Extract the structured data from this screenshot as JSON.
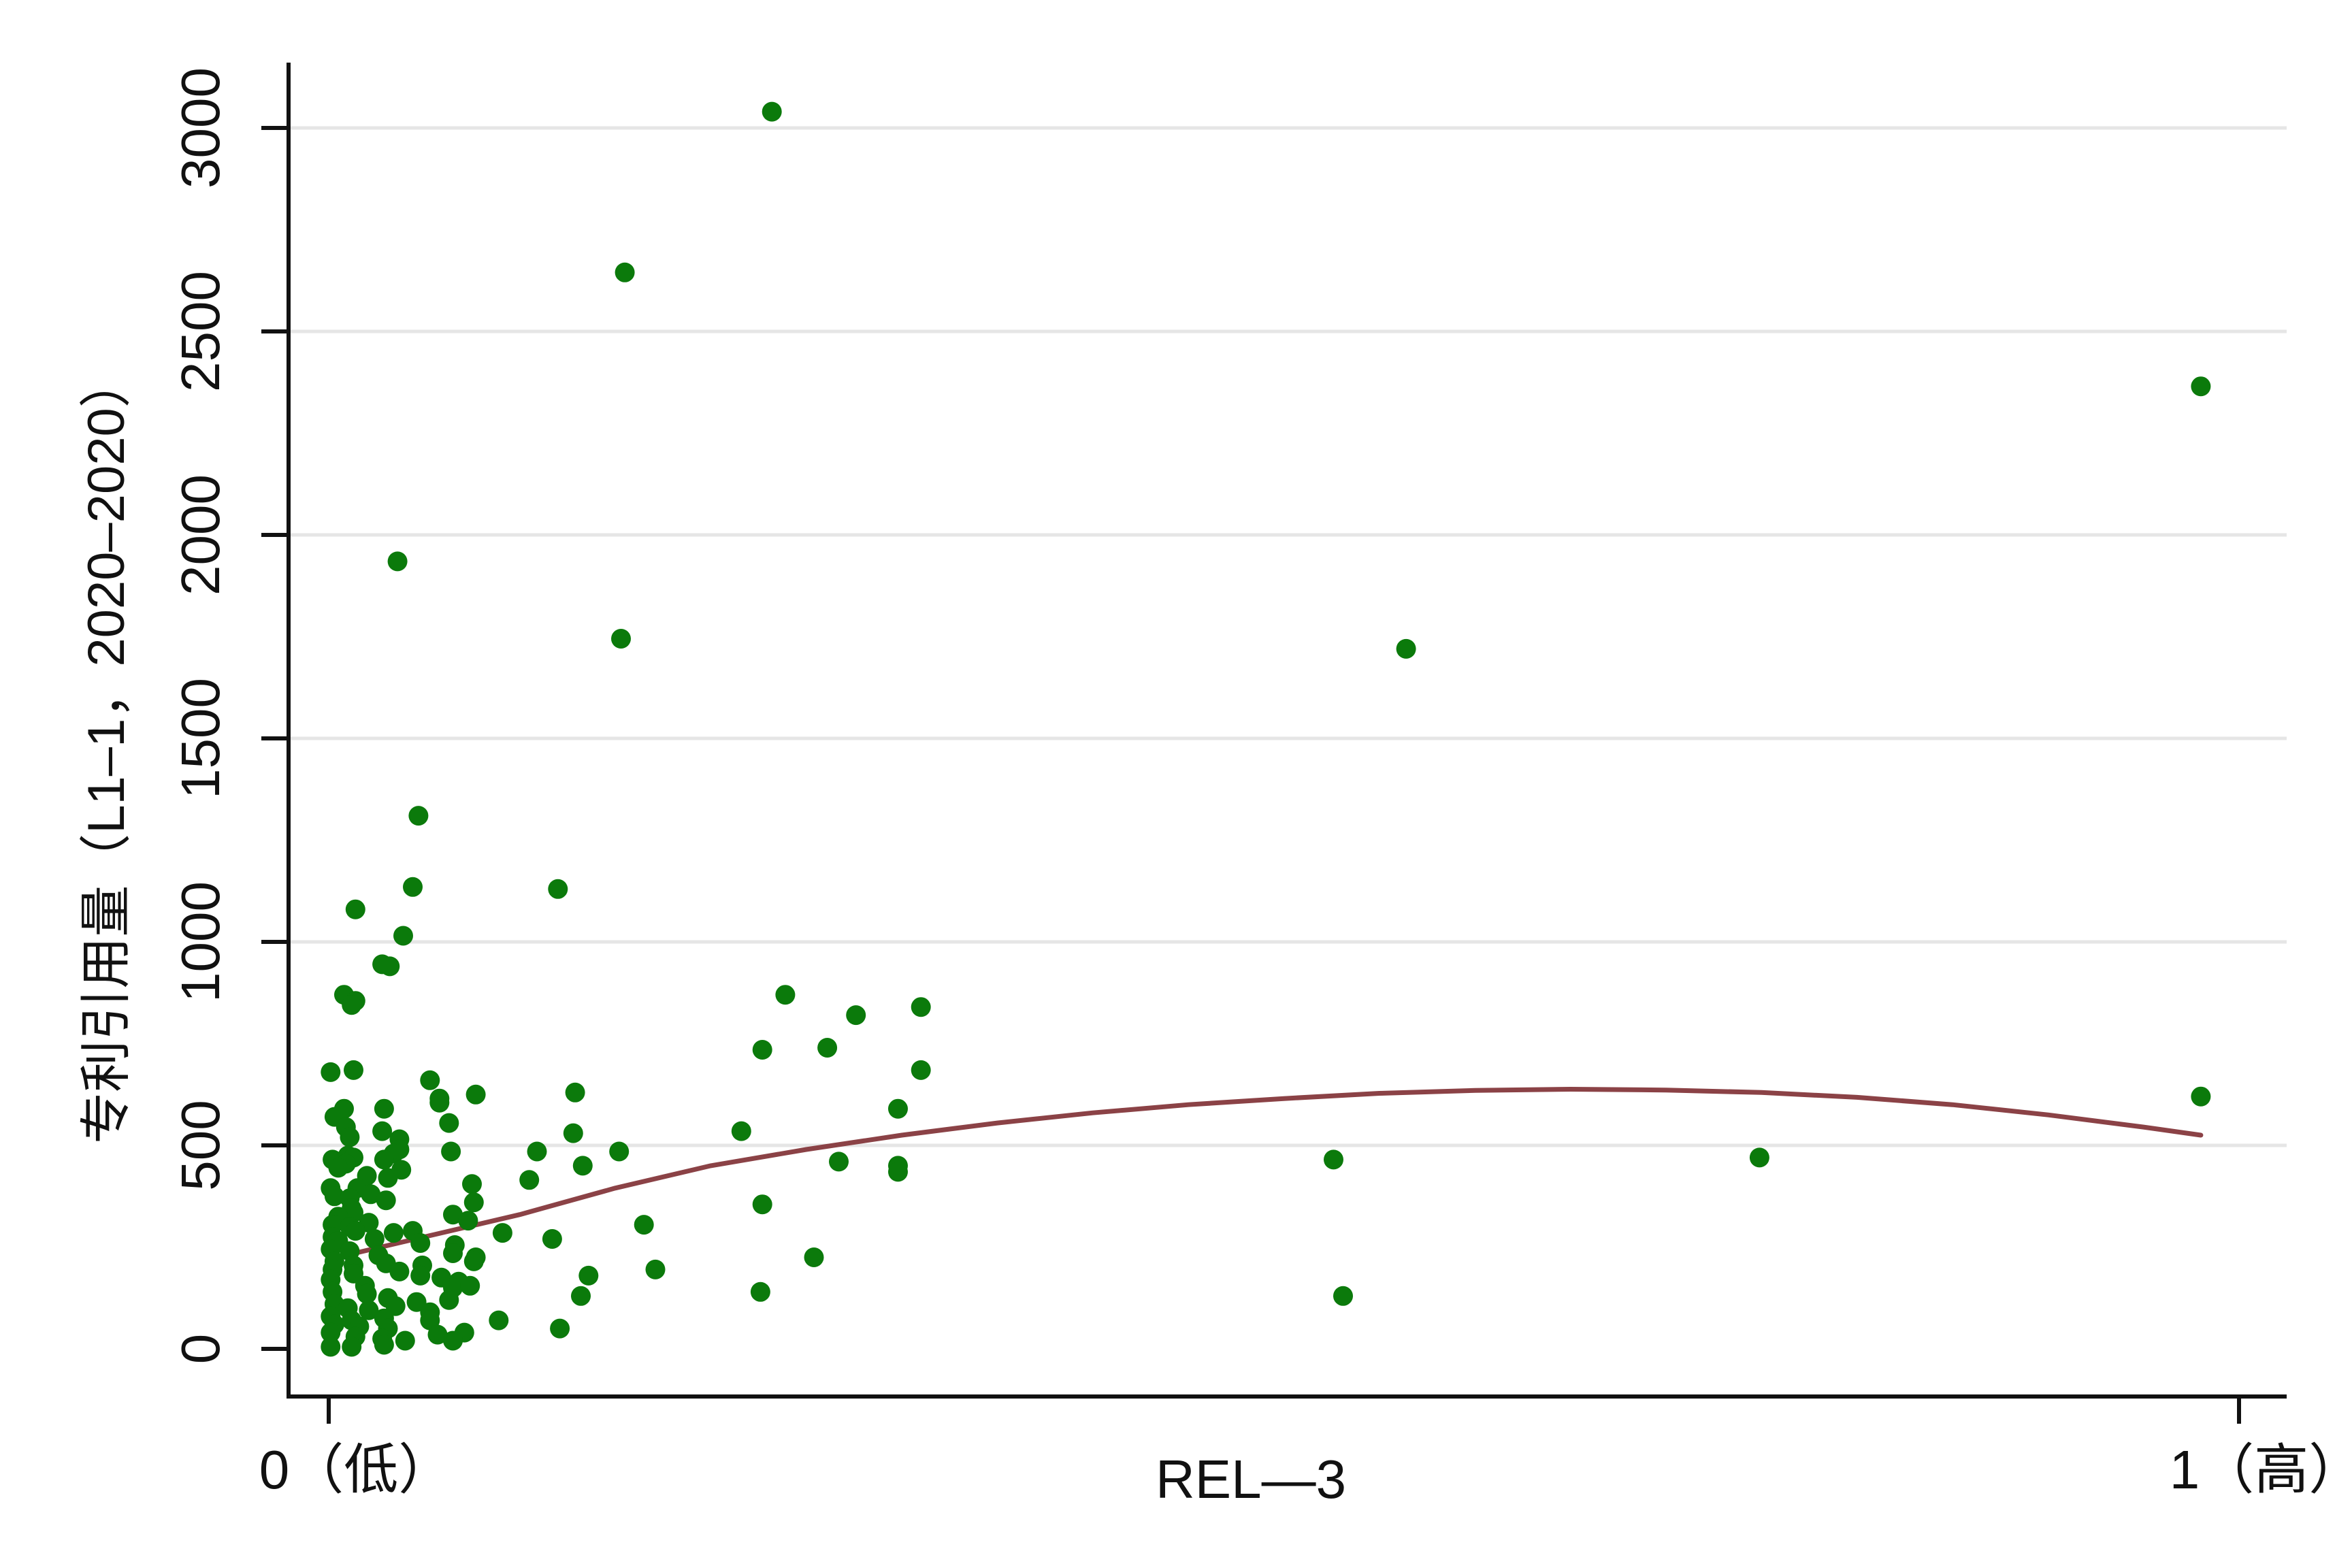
{
  "chart_data": {
    "type": "scatter",
    "title": "",
    "xlabel": "REL—3",
    "ylabel": "专利引用量（L1–1，2020–2020）",
    "xlim": [
      0,
      1
    ],
    "ylim": [
      0,
      3000
    ],
    "x_ticks": [
      {
        "value": 0,
        "label": "0（低）"
      },
      {
        "value": 1,
        "label": "1（高）"
      }
    ],
    "y_ticks": [
      {
        "value": 0,
        "label": "0"
      },
      {
        "value": 500,
        "label": "500"
      },
      {
        "value": 1000,
        "label": "1000"
      },
      {
        "value": 1500,
        "label": "1500"
      },
      {
        "value": 2000,
        "label": "2000"
      },
      {
        "value": 2500,
        "label": "2500"
      },
      {
        "value": 3000,
        "label": "3000"
      }
    ],
    "grid": "horizontal",
    "colors": {
      "points": "#0b7a0b",
      "fit": "#8b4246",
      "grid": "#e6e6e6",
      "axis": "#111111"
    },
    "points": [
      [
        0.232,
        3040
      ],
      [
        0.155,
        2645
      ],
      [
        0.98,
        2365
      ],
      [
        0.036,
        1935
      ],
      [
        0.153,
        1745
      ],
      [
        0.564,
        1720
      ],
      [
        0.047,
        1310
      ],
      [
        0.044,
        1135
      ],
      [
        0.12,
        1130
      ],
      [
        0.014,
        1080
      ],
      [
        0.039,
        1015
      ],
      [
        0.028,
        945
      ],
      [
        0.032,
        940
      ],
      [
        0.008,
        870
      ],
      [
        0.014,
        855
      ],
      [
        0.012,
        845
      ],
      [
        0.239,
        870
      ],
      [
        0.31,
        840
      ],
      [
        0.276,
        820
      ],
      [
        0.227,
        735
      ],
      [
        0.261,
        740
      ],
      [
        0.31,
        685
      ],
      [
        0.013,
        685
      ],
      [
        0.001,
        680
      ],
      [
        0.053,
        660
      ],
      [
        0.077,
        625
      ],
      [
        0.058,
        615
      ],
      [
        0.058,
        605
      ],
      [
        0.008,
        590
      ],
      [
        0.029,
        590
      ],
      [
        0.003,
        570
      ],
      [
        0.129,
        630
      ],
      [
        0.298,
        590
      ],
      [
        0.98,
        620
      ],
      [
        0.063,
        555
      ],
      [
        0.216,
        535
      ],
      [
        0.009,
        545
      ],
      [
        0.011,
        520
      ],
      [
        0.028,
        535
      ],
      [
        0.037,
        515
      ],
      [
        0.037,
        490
      ],
      [
        0.064,
        485
      ],
      [
        0.109,
        485
      ],
      [
        0.152,
        485
      ],
      [
        0.034,
        480
      ],
      [
        0.01,
        475
      ],
      [
        0.002,
        465
      ],
      [
        0.013,
        470
      ],
      [
        0.029,
        465
      ],
      [
        0.009,
        455
      ],
      [
        0.005,
        445
      ],
      [
        0.038,
        440
      ],
      [
        0.128,
        530
      ],
      [
        0.133,
        450
      ],
      [
        0.02,
        425
      ],
      [
        0.031,
        420
      ],
      [
        0.075,
        405
      ],
      [
        0.105,
        415
      ],
      [
        0.267,
        460
      ],
      [
        0.298,
        450
      ],
      [
        0.298,
        435
      ],
      [
        0.526,
        465
      ],
      [
        0.749,
        470
      ],
      [
        0.001,
        395
      ],
      [
        0.015,
        395
      ],
      [
        0.003,
        375
      ],
      [
        0.011,
        370
      ],
      [
        0.022,
        380
      ],
      [
        0.03,
        365
      ],
      [
        0.012,
        345
      ],
      [
        0.076,
        360
      ],
      [
        0.227,
        355
      ],
      [
        0.013,
        335
      ],
      [
        0.005,
        325
      ],
      [
        0.021,
        310
      ],
      [
        0.065,
        330
      ],
      [
        0.073,
        315
      ],
      [
        0.002,
        305
      ],
      [
        0.011,
        300
      ],
      [
        0.014,
        290
      ],
      [
        0.034,
        285
      ],
      [
        0.044,
        290
      ],
      [
        0.091,
        285
      ],
      [
        0.165,
        305
      ],
      [
        0.002,
        275
      ],
      [
        0.005,
        265
      ],
      [
        0.024,
        270
      ],
      [
        0.048,
        260
      ],
      [
        0.066,
        255
      ],
      [
        0.001,
        245
      ],
      [
        0.011,
        240
      ],
      [
        0.026,
        230
      ],
      [
        0.065,
        235
      ],
      [
        0.077,
        225
      ],
      [
        0.117,
        270
      ],
      [
        0.254,
        225
      ],
      [
        0.003,
        215
      ],
      [
        0.013,
        205
      ],
      [
        0.03,
        210
      ],
      [
        0.049,
        205
      ],
      [
        0.076,
        215
      ],
      [
        0.002,
        195
      ],
      [
        0.013,
        185
      ],
      [
        0.037,
        190
      ],
      [
        0.048,
        180
      ],
      [
        0.059,
        175
      ],
      [
        0.068,
        165
      ],
      [
        0.171,
        195
      ],
      [
        0.136,
        180
      ],
      [
        0.001,
        170
      ],
      [
        0.019,
        155
      ],
      [
        0.065,
        150
      ],
      [
        0.074,
        155
      ],
      [
        0.002,
        140
      ],
      [
        0.02,
        135
      ],
      [
        0.031,
        125
      ],
      [
        0.046,
        115
      ],
      [
        0.063,
        120
      ],
      [
        0.132,
        130
      ],
      [
        0.226,
        140
      ],
      [
        0.531,
        130
      ],
      [
        0.003,
        110
      ],
      [
        0.01,
        100
      ],
      [
        0.021,
        95
      ],
      [
        0.035,
        105
      ],
      [
        0.053,
        90
      ],
      [
        0.001,
        80
      ],
      [
        0.012,
        70
      ],
      [
        0.029,
        75
      ],
      [
        0.053,
        70
      ],
      [
        0.089,
        70
      ],
      [
        0.003,
        60
      ],
      [
        0.016,
        55
      ],
      [
        0.031,
        50
      ],
      [
        0.071,
        40
      ],
      [
        0.121,
        50
      ],
      [
        0.001,
        40
      ],
      [
        0.014,
        30
      ],
      [
        0.028,
        25
      ],
      [
        0.04,
        20
      ],
      [
        0.065,
        20
      ],
      [
        0.057,
        35
      ],
      [
        0.001,
        5
      ],
      [
        0.012,
        5
      ],
      [
        0.029,
        10
      ]
    ],
    "fit_line": [
      [
        0,
        220
      ],
      [
        0.05,
        275
      ],
      [
        0.1,
        330
      ],
      [
        0.15,
        395
      ],
      [
        0.2,
        450
      ],
      [
        0.25,
        490
      ],
      [
        0.3,
        525
      ],
      [
        0.35,
        555
      ],
      [
        0.4,
        580
      ],
      [
        0.45,
        600
      ],
      [
        0.5,
        615
      ],
      [
        0.55,
        628
      ],
      [
        0.6,
        635
      ],
      [
        0.65,
        638
      ],
      [
        0.7,
        636
      ],
      [
        0.75,
        630
      ],
      [
        0.8,
        618
      ],
      [
        0.85,
        600
      ],
      [
        0.9,
        575
      ],
      [
        0.95,
        545
      ],
      [
        0.98,
        525
      ]
    ]
  }
}
